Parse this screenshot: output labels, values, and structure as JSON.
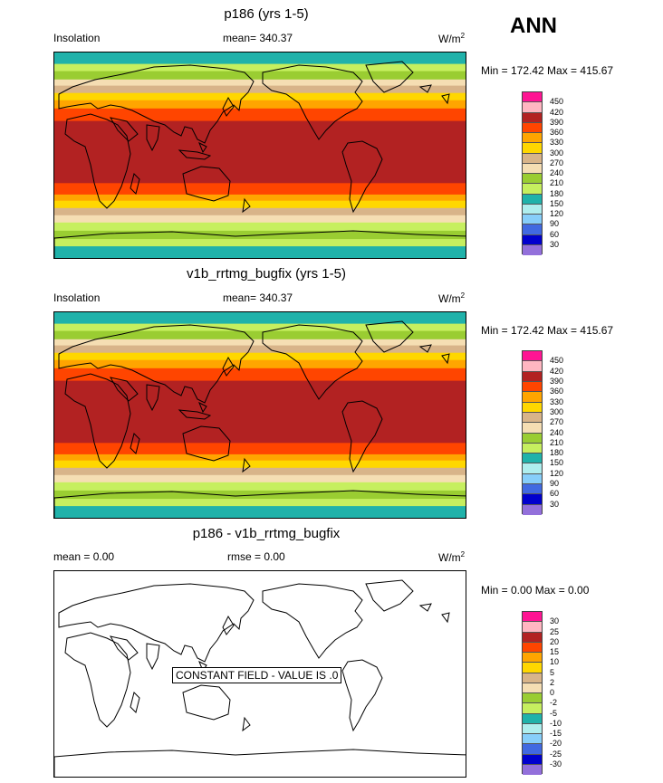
{
  "season": "ANN",
  "colors": {
    "bands": [
      "#20b2aa",
      "#c6ef5f",
      "#9acd32",
      "#f5deb3",
      "#d8b489",
      "#ffd700",
      "#ffa500",
      "#ff4500",
      "#b22222",
      "#ff4500",
      "#ffa500",
      "#ffd700",
      "#d8b489",
      "#f5deb3",
      "#c6ef5f",
      "#9acd32",
      "#c6ef5f",
      "#20b2aa"
    ],
    "scale": [
      "#ff1493",
      "#ffb6c1",
      "#b22222",
      "#ff4500",
      "#ffa500",
      "#ffd700",
      "#d8b489",
      "#f5deb3",
      "#9acd32",
      "#c6ef5f",
      "#20b2aa",
      "#afeeee",
      "#87cefa",
      "#4169e1",
      "#0000cd",
      "#9370db"
    ],
    "coast": "#000000"
  },
  "panels": [
    {
      "title": "p186 (yrs 1-5)",
      "left_label": "Insolation",
      "mean_label": "mean= 340.37",
      "units": "W/m",
      "units_sup": "2",
      "minmax": "Min = 172.42 Max = 415.67",
      "field": "banded",
      "colorbar_ticks": [
        "450",
        "420",
        "390",
        "360",
        "330",
        "300",
        "270",
        "240",
        "210",
        "180",
        "150",
        "120",
        "90",
        "60",
        "30"
      ]
    },
    {
      "title": "v1b_rrtmg_bugfix (yrs 1-5)",
      "left_label": "Insolation",
      "mean_label": "mean= 340.37",
      "units": "W/m",
      "units_sup": "2",
      "minmax": "Min = 172.42 Max = 415.67",
      "field": "banded",
      "colorbar_ticks": [
        "450",
        "420",
        "390",
        "360",
        "330",
        "300",
        "270",
        "240",
        "210",
        "180",
        "150",
        "120",
        "90",
        "60",
        "30"
      ]
    },
    {
      "title": "p186 - v1b_rrtmg_bugfix",
      "left_label": "mean =   0.00",
      "mean_label": "rmse =   0.00",
      "units": "W/m",
      "units_sup": "2",
      "minmax": "Min =   0.00 Max =   0.00",
      "field": "constant",
      "constant_text": "CONSTANT FIELD - VALUE IS .0",
      "colorbar_ticks": [
        "30",
        "25",
        "20",
        "15",
        "10",
        "5",
        "2",
        "0",
        "-2",
        "-5",
        "-10",
        "-15",
        "-20",
        "-25",
        "-30"
      ]
    }
  ]
}
